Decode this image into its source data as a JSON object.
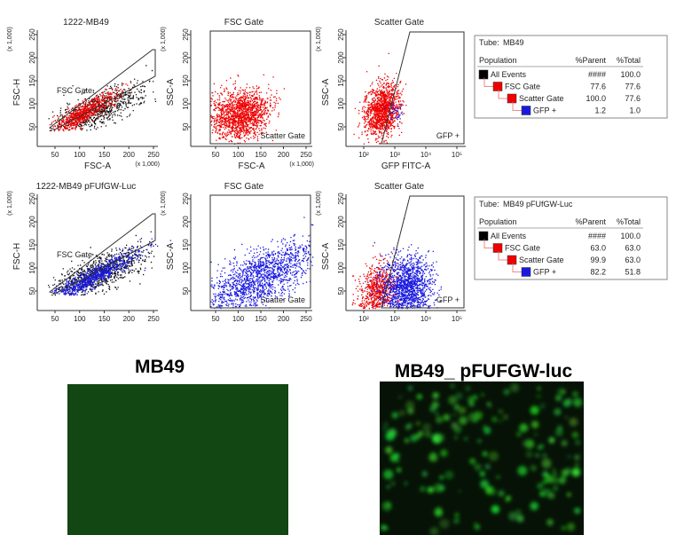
{
  "rows": [
    {
      "plots": [
        {
          "title": "1222-MB49",
          "x_label": "FSC-A",
          "y_label": "FSC-H",
          "x_unit": "(x 1,000)",
          "y_unit": "(x 1,000)",
          "x_ticks": [
            "50",
            "100",
            "150",
            "200",
            "250"
          ],
          "y_ticks": [
            "50",
            "100",
            "150",
            "200",
            "250"
          ],
          "gate_label": "FSC Gate"
        },
        {
          "title": "FSC Gate",
          "x_label": "FSC-A",
          "y_label": "SSC-A",
          "x_unit": "(x 1,000)",
          "y_unit": "(x 1,000)",
          "x_ticks": [
            "50",
            "100",
            "150",
            "200",
            "250"
          ],
          "y_ticks": [
            "50",
            "100",
            "150",
            "200",
            "250"
          ],
          "gate_label": "Scatter Gate"
        },
        {
          "title": "Scatter Gate",
          "x_label": "GFP FITC-A",
          "y_label": "SSC-A",
          "y_unit": "(x 1,000)",
          "x_ticks": [
            "10²",
            "10³",
            "10⁴",
            "10⁵"
          ],
          "y_ticks": [
            "50",
            "100",
            "150",
            "200",
            "250"
          ],
          "gate_label": "GFP +"
        }
      ],
      "table": {
        "tube_label": "Tube:",
        "tube": "MB49",
        "headers": [
          "Population",
          "%Parent",
          "%Total"
        ],
        "rows": [
          [
            "All Events",
            "####",
            "100.0"
          ],
          [
            "FSC Gate",
            "77.6",
            "77.6"
          ],
          [
            "Scatter Gate",
            "100.0",
            "77.6"
          ],
          [
            "GFP +",
            "1.2",
            "1.0"
          ]
        ]
      }
    },
    {
      "plots": [
        {
          "title": "1222-MB49 pFUfGW-Luc",
          "y_label": "FSC-H",
          "y_unit": "(x 1,000)",
          "x_ticks": [
            "50",
            "100",
            "150",
            "200",
            "250"
          ],
          "y_ticks": [
            "50",
            "100",
            "150",
            "200",
            "250"
          ],
          "gate_label": "FSC Gate"
        },
        {
          "title": "FSC Gate",
          "y_label": "SSC-A",
          "y_unit": "(x 1,000)",
          "x_ticks": [
            "50",
            "100",
            "150",
            "200",
            "250"
          ],
          "y_ticks": [
            "50",
            "100",
            "150",
            "200",
            "250"
          ],
          "gate_label": "Scatter Gate"
        },
        {
          "title": "Scatter Gate",
          "y_label": "SSC-A",
          "y_unit": "(x 1,000)",
          "x_ticks": [
            "10²",
            "10³",
            "10⁴",
            "10⁵"
          ],
          "y_ticks": [
            "50",
            "100",
            "150",
            "200",
            "250"
          ],
          "gate_label": "GFP +"
        }
      ],
      "table": {
        "tube_label": "Tube:",
        "tube": "MB49 pFUfGW-Luc",
        "headers": [
          "Population",
          "%Parent",
          "%Total"
        ],
        "rows": [
          [
            "All Events",
            "####",
            "100.0"
          ],
          [
            "FSC Gate",
            "63.0",
            "63.0"
          ],
          [
            "Scatter Gate",
            "99.9",
            "63.0"
          ],
          [
            "GFP +",
            "82.2",
            "51.8"
          ]
        ]
      }
    }
  ],
  "images": [
    {
      "label": "MB49"
    },
    {
      "label": "MB49_ pFUFGW-luc"
    }
  ]
}
